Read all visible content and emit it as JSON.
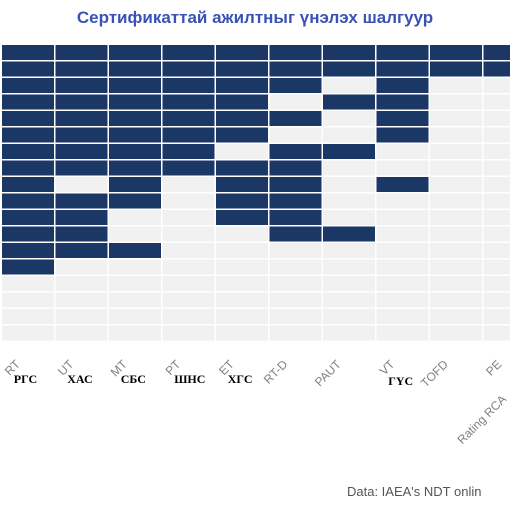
{
  "title": "Сертификаттай ажилтныг үнэлэх шалгуур",
  "source": "Data: IAEA's NDT onlin",
  "colors": {
    "filled": "#1a3766",
    "empty": "#f1f1f1",
    "grid": "#ffffff",
    "tick_text": "#808080"
  },
  "chart_data": {
    "type": "heatmap",
    "title": "Сертификаттай ажилтныг үнэлэх шалгуур",
    "columns": [
      "RT",
      "UT",
      "MT",
      "PT",
      "ET",
      "RT-D",
      "PAUT",
      "VT",
      "TOFD",
      "PE"
    ],
    "column_labels_mn": [
      "РГС",
      "ХАС",
      "СБС",
      "ШНС",
      "ХГС",
      "",
      "",
      "ГҮС",
      "",
      ""
    ],
    "secondary_label": "Rating RCA",
    "rows": 18,
    "values": [
      [
        1,
        1,
        1,
        1,
        1,
        1,
        1,
        1,
        1,
        1
      ],
      [
        1,
        1,
        1,
        1,
        1,
        1,
        1,
        1,
        1,
        1
      ],
      [
        1,
        1,
        1,
        1,
        1,
        1,
        0,
        1,
        0,
        0
      ],
      [
        1,
        1,
        1,
        1,
        1,
        0,
        1,
        1,
        0,
        0
      ],
      [
        1,
        1,
        1,
        1,
        1,
        1,
        0,
        1,
        0,
        0
      ],
      [
        1,
        1,
        1,
        1,
        1,
        0,
        0,
        1,
        0,
        0
      ],
      [
        1,
        1,
        1,
        1,
        0,
        1,
        1,
        0,
        0,
        0
      ],
      [
        1,
        1,
        1,
        1,
        1,
        1,
        0,
        0,
        0,
        0
      ],
      [
        1,
        0,
        1,
        0,
        1,
        1,
        0,
        1,
        0,
        0
      ],
      [
        1,
        1,
        1,
        0,
        1,
        1,
        0,
        0,
        0,
        0
      ],
      [
        1,
        1,
        0,
        0,
        1,
        1,
        0,
        0,
        0,
        0
      ],
      [
        1,
        1,
        0,
        0,
        0,
        1,
        1,
        0,
        0,
        0
      ],
      [
        1,
        1,
        1,
        0,
        0,
        0,
        0,
        0,
        0,
        0
      ],
      [
        1,
        0,
        0,
        0,
        0,
        0,
        0,
        0,
        0,
        0
      ],
      [
        0,
        0,
        0,
        0,
        0,
        0,
        0,
        0,
        0,
        0
      ],
      [
        0,
        0,
        0,
        0,
        0,
        0,
        0,
        0,
        0,
        0
      ],
      [
        0,
        0,
        0,
        0,
        0,
        0,
        0,
        0,
        0,
        0
      ],
      [
        0,
        0,
        0,
        0,
        0,
        0,
        0,
        0,
        0,
        0
      ]
    ]
  }
}
